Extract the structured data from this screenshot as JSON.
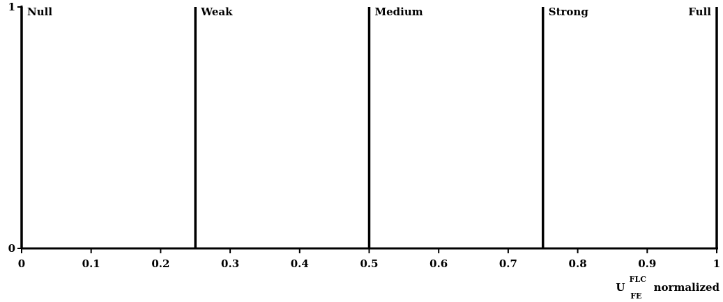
{
  "chart_data": {
    "type": "line",
    "title": "",
    "xlabel": {
      "base": "U",
      "superscript": "FLC",
      "subscript": "FE",
      "suffix": "normalized"
    },
    "ylabel": "",
    "xlim": [
      0,
      1
    ],
    "ylim": [
      0,
      1
    ],
    "x_ticks": [
      0,
      0.1,
      0.2,
      0.3,
      0.4,
      0.5,
      0.6,
      0.7,
      0.8,
      0.9,
      1
    ],
    "x_tick_labels": [
      "0",
      "0.1",
      "0.2",
      "0.3",
      "0.4",
      "0.5",
      "0.6",
      "0.7",
      "0.8",
      "0.9",
      "1"
    ],
    "y_ticks": [
      0,
      1
    ],
    "y_tick_labels": [
      "0",
      "1"
    ],
    "grid": false,
    "legend": "none",
    "color": "#000000",
    "series": [
      {
        "name": "Null",
        "x": [
          0,
          0
        ],
        "y": [
          0,
          1
        ]
      },
      {
        "name": "Weak",
        "x": [
          0.25,
          0.25
        ],
        "y": [
          0,
          1
        ]
      },
      {
        "name": "Medium",
        "x": [
          0.5,
          0.5
        ],
        "y": [
          0,
          1
        ]
      },
      {
        "name": "Strong",
        "x": [
          0.75,
          0.75
        ],
        "y": [
          0,
          1
        ]
      },
      {
        "name": "Full",
        "x": [
          1,
          1
        ],
        "y": [
          0,
          1
        ]
      }
    ]
  }
}
